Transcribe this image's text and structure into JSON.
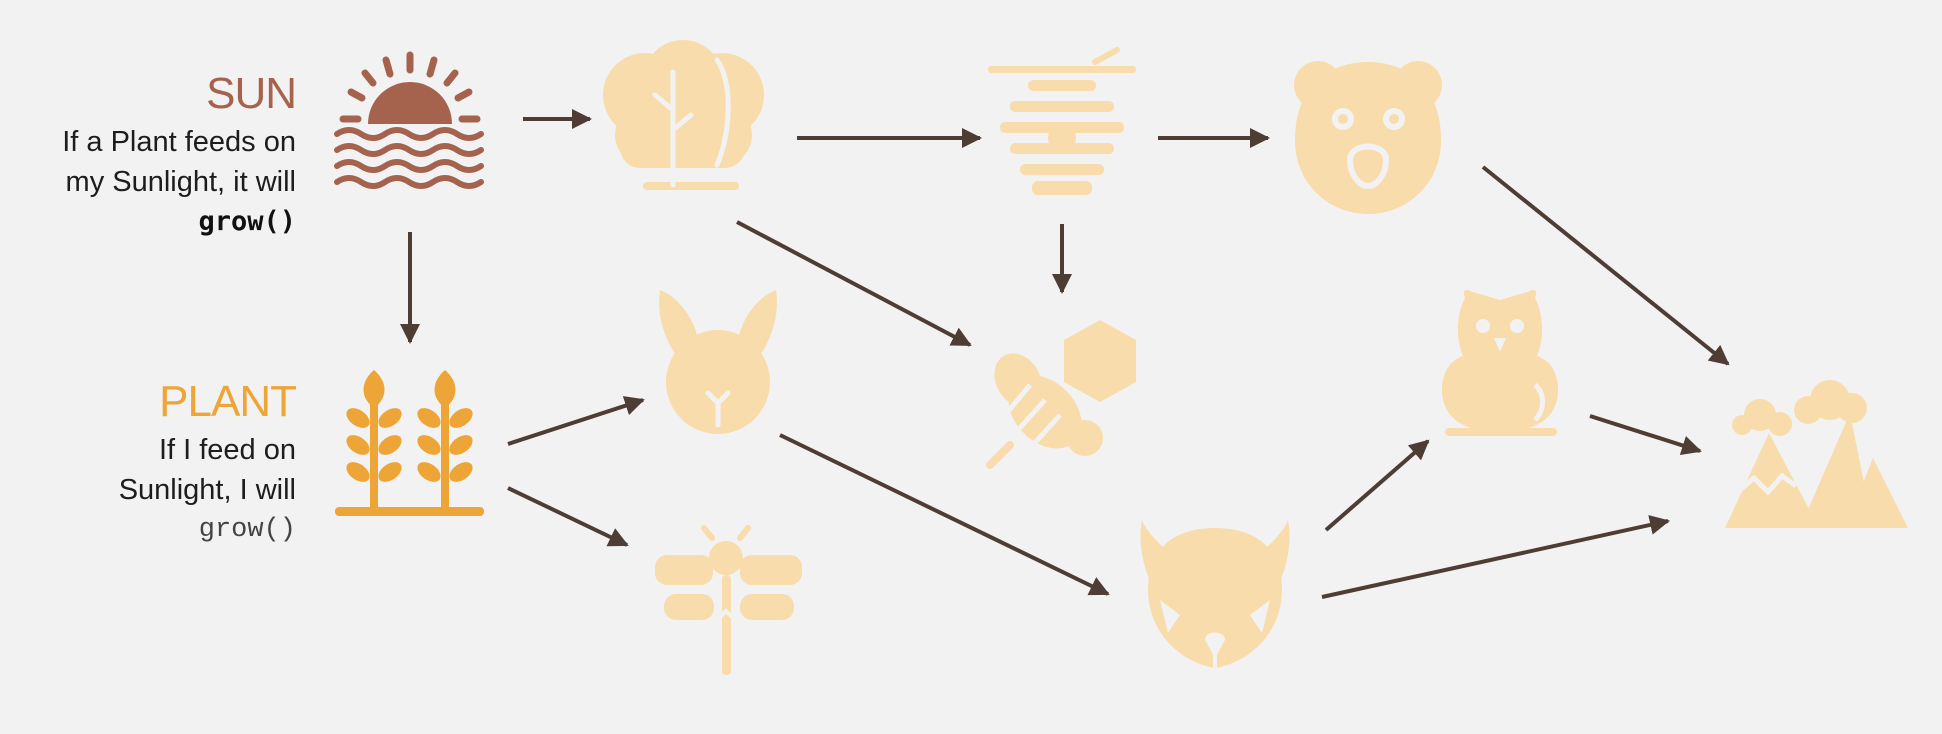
{
  "colors": {
    "background": "#f3f2f2",
    "sun": "#a5634d",
    "plant": "#eea538",
    "faded": "#f9dcac",
    "arrow": "#4e3d34"
  },
  "sun": {
    "title": "SUN",
    "line1": "If a Plant feeds on",
    "line2": "my Sunlight, it will",
    "code": "grow()"
  },
  "plant": {
    "title": "PLANT",
    "line1": "If I feed on",
    "line2": "Sunlight, I will",
    "code": "grow()"
  },
  "nodes": [
    {
      "id": "sun",
      "icon": "sun-icon"
    },
    {
      "id": "tree",
      "icon": "tree-icon"
    },
    {
      "id": "beehive",
      "icon": "beehive-icon"
    },
    {
      "id": "bear",
      "icon": "bear-icon"
    },
    {
      "id": "wheat",
      "icon": "wheat-icon"
    },
    {
      "id": "rabbit",
      "icon": "rabbit-icon"
    },
    {
      "id": "bee",
      "icon": "bee-icon"
    },
    {
      "id": "dragonfly",
      "icon": "dragonfly-icon"
    },
    {
      "id": "fox",
      "icon": "fox-icon"
    },
    {
      "id": "owl",
      "icon": "owl-icon"
    },
    {
      "id": "mountain",
      "icon": "mountain-icon"
    }
  ],
  "edges": [
    {
      "from": "sun",
      "to": "tree"
    },
    {
      "from": "sun",
      "to": "wheat"
    },
    {
      "from": "tree",
      "to": "beehive"
    },
    {
      "from": "beehive",
      "to": "bear"
    },
    {
      "from": "tree",
      "to": "bee"
    },
    {
      "from": "beehive",
      "to": "bee"
    },
    {
      "from": "bear",
      "to": "mountain"
    },
    {
      "from": "wheat",
      "to": "rabbit"
    },
    {
      "from": "wheat",
      "to": "dragonfly"
    },
    {
      "from": "rabbit",
      "to": "fox"
    },
    {
      "from": "fox",
      "to": "owl"
    },
    {
      "from": "owl",
      "to": "mountain"
    },
    {
      "from": "fox",
      "to": "mountain"
    }
  ]
}
